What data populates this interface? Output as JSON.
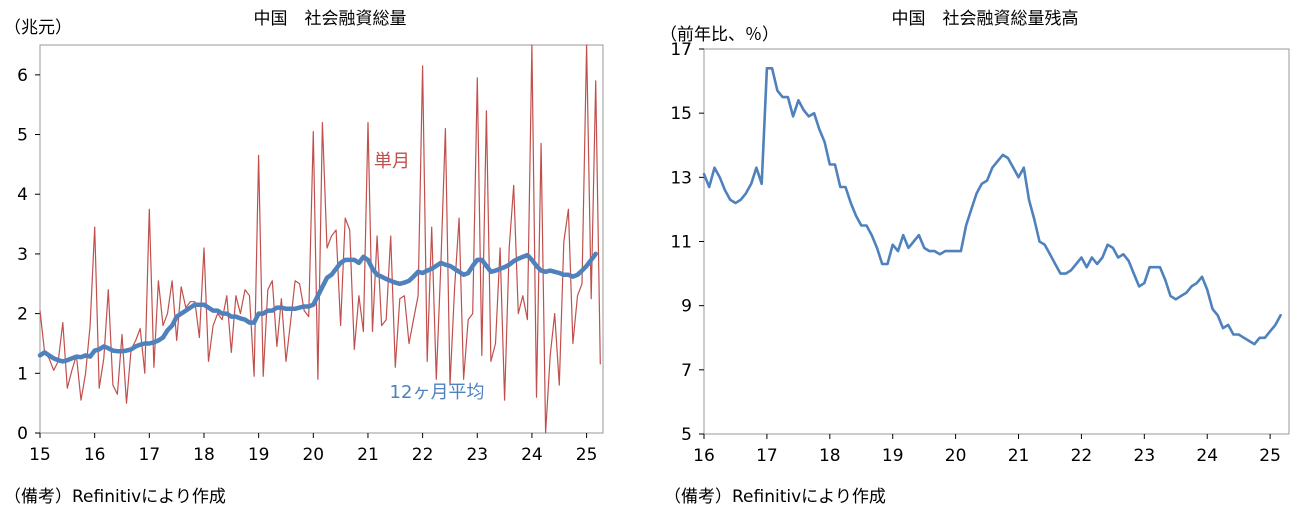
{
  "chart_data": [
    {
      "type": "line",
      "title": "中国　社会融資総量",
      "ylabel": "（兆元）",
      "xlabel": "",
      "x_tick_labels": [
        "15",
        "16",
        "17",
        "18",
        "19",
        "20",
        "21",
        "22",
        "23",
        "24",
        "25"
      ],
      "y_tick_labels": [
        "0",
        "1",
        "2",
        "3",
        "4",
        "5",
        "6"
      ],
      "xlim": [
        15,
        25.3
      ],
      "ylim": [
        0,
        6.5
      ],
      "grid": false,
      "note": "（備考）Refinitivにより作成",
      "colors": {
        "monthly": "#c0504d",
        "average": "#4f81bd"
      },
      "series": [
        {
          "name": "単月",
          "x_start": 15.0,
          "x_step": 0.0833333,
          "values": [
            2.05,
            1.35,
            1.25,
            1.05,
            1.2,
            1.85,
            0.75,
            1.05,
            1.3,
            0.55,
            1.0,
            1.8,
            3.45,
            0.75,
            1.25,
            2.4,
            0.8,
            0.65,
            1.65,
            0.5,
            1.4,
            1.55,
            1.75,
            1.0,
            3.75,
            1.1,
            2.55,
            1.8,
            2.0,
            2.55,
            1.55,
            2.45,
            2.1,
            2.2,
            2.2,
            1.6,
            3.1,
            1.2,
            1.8,
            2.0,
            1.9,
            2.3,
            1.35,
            2.3,
            2.0,
            2.4,
            2.3,
            0.95,
            4.65,
            0.95,
            2.4,
            2.55,
            1.45,
            2.25,
            1.2,
            1.85,
            2.55,
            2.5,
            2.05,
            1.95,
            5.05,
            0.9,
            5.2,
            3.1,
            3.3,
            3.4,
            1.8,
            3.6,
            3.4,
            1.4,
            2.3,
            1.7,
            5.2,
            1.7,
            3.3,
            1.8,
            1.9,
            3.3,
            1.1,
            2.25,
            2.3,
            1.5,
            1.9,
            2.3,
            6.15,
            1.2,
            3.45,
            0.9,
            2.8,
            5.1,
            0.8,
            2.4,
            3.6,
            0.9,
            1.9,
            2.0,
            5.95,
            1.3,
            5.4,
            1.2,
            1.5,
            3.1,
            0.55,
            3.1,
            4.15,
            2.0,
            2.3,
            1.9,
            6.5,
            0.6,
            4.85,
            0.0,
            1.3,
            2.0,
            0.8,
            3.2,
            3.75,
            1.5,
            2.3,
            2.5,
            7.0,
            2.25,
            5.9,
            1.15
          ]
        },
        {
          "name": "12ヶ月平均",
          "x_start": 15.0,
          "x_step": 0.0833333,
          "values": [
            1.3,
            1.35,
            1.3,
            1.25,
            1.22,
            1.2,
            1.22,
            1.25,
            1.28,
            1.27,
            1.3,
            1.28,
            1.38,
            1.4,
            1.45,
            1.42,
            1.38,
            1.37,
            1.37,
            1.38,
            1.4,
            1.45,
            1.48,
            1.5,
            1.5,
            1.52,
            1.55,
            1.6,
            1.72,
            1.8,
            1.95,
            2.0,
            2.05,
            2.1,
            2.15,
            2.15,
            2.15,
            2.1,
            2.05,
            2.05,
            2.0,
            2.0,
            1.95,
            1.95,
            1.92,
            1.9,
            1.85,
            1.85,
            2.0,
            2.0,
            2.05,
            2.05,
            2.1,
            2.1,
            2.08,
            2.08,
            2.08,
            2.1,
            2.12,
            2.12,
            2.15,
            2.3,
            2.45,
            2.6,
            2.65,
            2.75,
            2.85,
            2.9,
            2.9,
            2.9,
            2.85,
            2.95,
            2.9,
            2.75,
            2.65,
            2.62,
            2.58,
            2.55,
            2.52,
            2.5,
            2.52,
            2.55,
            2.62,
            2.7,
            2.68,
            2.72,
            2.75,
            2.8,
            2.85,
            2.82,
            2.8,
            2.75,
            2.7,
            2.65,
            2.68,
            2.8,
            2.9,
            2.9,
            2.8,
            2.7,
            2.72,
            2.75,
            2.78,
            2.82,
            2.88,
            2.92,
            2.95,
            2.98,
            2.9,
            2.8,
            2.72,
            2.7,
            2.72,
            2.7,
            2.68,
            2.65,
            2.65,
            2.62,
            2.65,
            2.72,
            2.8,
            2.9,
            3.0
          ]
        }
      ],
      "annotations": [
        "単月",
        "12ヶ月平均"
      ]
    },
    {
      "type": "line",
      "title": "中国　社会融資総量残高",
      "ylabel": "（前年比、％）",
      "xlabel": "",
      "x_tick_labels": [
        "16",
        "17",
        "18",
        "19",
        "20",
        "21",
        "22",
        "23",
        "24",
        "25"
      ],
      "y_tick_labels": [
        "5",
        "7",
        "9",
        "11",
        "13",
        "15",
        "17"
      ],
      "xlim": [
        16,
        25.3
      ],
      "ylim": [
        5,
        17
      ],
      "grid": false,
      "note": "（備考）Refinitivにより作成",
      "colors": {
        "line": "#4f81bd"
      },
      "series": [
        {
          "name": "",
          "x_start": 16.0,
          "x_step": 0.0833333,
          "values": [
            13.1,
            12.7,
            13.3,
            13.0,
            12.6,
            12.3,
            12.2,
            12.3,
            12.5,
            12.8,
            13.3,
            12.8,
            16.4,
            16.4,
            15.7,
            15.5,
            15.5,
            14.9,
            15.4,
            15.1,
            14.9,
            15.0,
            14.5,
            14.1,
            13.4,
            13.4,
            12.7,
            12.7,
            12.2,
            11.8,
            11.5,
            11.5,
            11.2,
            10.8,
            10.3,
            10.3,
            10.9,
            10.7,
            11.2,
            10.8,
            11.0,
            11.2,
            10.8,
            10.7,
            10.7,
            10.6,
            10.7,
            10.7,
            10.7,
            10.7,
            11.5,
            12.0,
            12.5,
            12.8,
            12.9,
            13.3,
            13.5,
            13.7,
            13.6,
            13.3,
            13.0,
            13.3,
            12.3,
            11.7,
            11.0,
            10.9,
            10.6,
            10.3,
            10.0,
            10.0,
            10.1,
            10.3,
            10.5,
            10.2,
            10.5,
            10.3,
            10.5,
            10.9,
            10.8,
            10.5,
            10.6,
            10.4,
            10.0,
            9.6,
            9.7,
            10.2,
            10.2,
            10.2,
            9.8,
            9.3,
            9.2,
            9.3,
            9.4,
            9.6,
            9.7,
            9.9,
            9.5,
            8.9,
            8.7,
            8.3,
            8.4,
            8.1,
            8.1,
            8.0,
            7.9,
            7.8,
            8.0,
            8.0,
            8.2,
            8.4,
            8.7
          ]
        }
      ]
    }
  ]
}
